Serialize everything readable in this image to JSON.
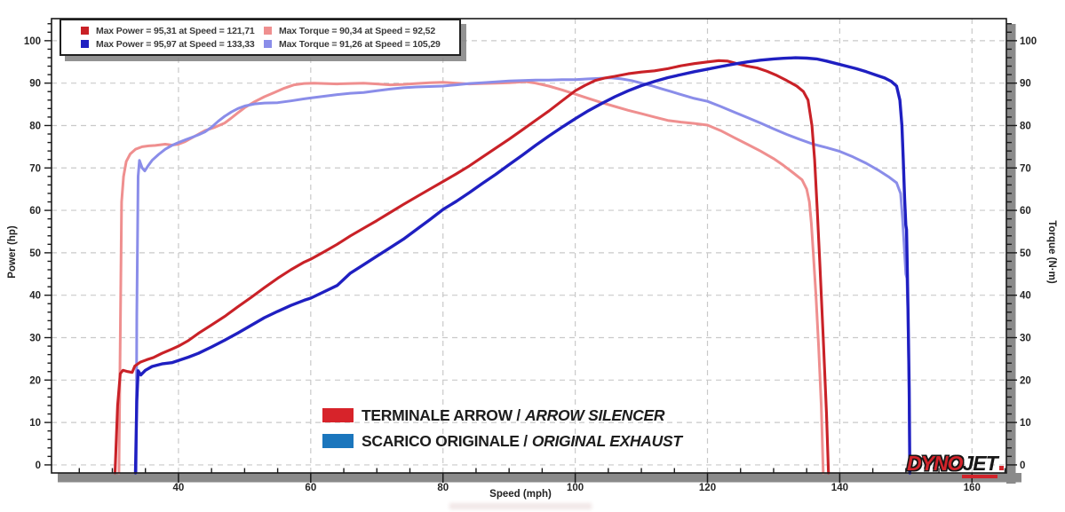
{
  "chart_data": {
    "type": "line",
    "xlabel": "Speed (mph)",
    "ylabel_left": "Power (hp)",
    "ylabel_right": "Torque (N·m)",
    "x_range": [
      20.8,
      165.2
    ],
    "y_range": [
      -1.9,
      105.2
    ],
    "x_ticks": [
      40,
      60,
      80,
      100,
      120,
      140,
      160
    ],
    "y_ticks": [
      0,
      10,
      20,
      30,
      40,
      50,
      60,
      70,
      80,
      90,
      100
    ],
    "x_minor_step": 5,
    "y_minor_step": 2,
    "grid": "dashed",
    "legend_position": "top-left",
    "series": [
      {
        "name": "arrow-power",
        "legend": "Max Power = 95,31 at Speed = 121,71",
        "color": "#c92127",
        "width": 3.1,
        "points": [
          [
            30.4,
            -1.9
          ],
          [
            30.8,
            14
          ],
          [
            31.2,
            21.5
          ],
          [
            31.6,
            22.3
          ],
          [
            32.3,
            22.0
          ],
          [
            33.0,
            21.8
          ],
          [
            33.4,
            23.3
          ],
          [
            34.2,
            24.2
          ],
          [
            35.2,
            24.8
          ],
          [
            36.2,
            25.3
          ],
          [
            37.5,
            26.3
          ],
          [
            39,
            27.3
          ],
          [
            40,
            28.0
          ],
          [
            41.5,
            29.3
          ],
          [
            43,
            31
          ],
          [
            45,
            33
          ],
          [
            47,
            35
          ],
          [
            49,
            37.3
          ],
          [
            51,
            39.5
          ],
          [
            53,
            41.8
          ],
          [
            55,
            44
          ],
          [
            57,
            46
          ],
          [
            59,
            47.8
          ],
          [
            60,
            48.5
          ],
          [
            62,
            50.2
          ],
          [
            64,
            52
          ],
          [
            66,
            54
          ],
          [
            68,
            55.8
          ],
          [
            70,
            57.6
          ],
          [
            72,
            59.5
          ],
          [
            74,
            61.4
          ],
          [
            76,
            63.2
          ],
          [
            78,
            65
          ],
          [
            80,
            66.8
          ],
          [
            82,
            68.6
          ],
          [
            84,
            70.5
          ],
          [
            86,
            72.6
          ],
          [
            88,
            74.7
          ],
          [
            90,
            76.8
          ],
          [
            92,
            79
          ],
          [
            94,
            81.2
          ],
          [
            96,
            83.4
          ],
          [
            98,
            85.8
          ],
          [
            100,
            88.2
          ],
          [
            101.5,
            89.5
          ],
          [
            103,
            90.6
          ],
          [
            104.5,
            91.2
          ],
          [
            106,
            91.6
          ],
          [
            108,
            92.2
          ],
          [
            110,
            92.6
          ],
          [
            112,
            92.9
          ],
          [
            114,
            93.4
          ],
          [
            116,
            94.1
          ],
          [
            118,
            94.6
          ],
          [
            120,
            95.0
          ],
          [
            121.7,
            95.31
          ],
          [
            123,
            95.2
          ],
          [
            124.5,
            94.6
          ],
          [
            126,
            94.0
          ],
          [
            127.5,
            93.6
          ],
          [
            129,
            92.8
          ],
          [
            130.5,
            91.8
          ],
          [
            132,
            90.6
          ],
          [
            133.5,
            89.3
          ],
          [
            134.5,
            88.0
          ],
          [
            135.2,
            86.0
          ],
          [
            135.8,
            80
          ],
          [
            136.2,
            72
          ],
          [
            136.6,
            60
          ],
          [
            137.0,
            47
          ],
          [
            137.5,
            30
          ],
          [
            138.0,
            12
          ],
          [
            138.3,
            -1.9
          ]
        ]
      },
      {
        "name": "original-power",
        "legend": "Max Power = 95,97 at Speed = 133,33",
        "color": "#1f1fc1",
        "width": 3.4,
        "points": [
          [
            33.5,
            -1.9
          ],
          [
            33.7,
            15
          ],
          [
            33.9,
            22.2
          ],
          [
            34.3,
            21.2
          ],
          [
            35,
            22.3
          ],
          [
            36,
            23.2
          ],
          [
            37.5,
            23.8
          ],
          [
            39,
            24.1
          ],
          [
            40,
            24.6
          ],
          [
            41.5,
            25.4
          ],
          [
            43,
            26.3
          ],
          [
            45,
            27.8
          ],
          [
            47,
            29.4
          ],
          [
            49,
            31.1
          ],
          [
            51,
            32.9
          ],
          [
            53,
            34.7
          ],
          [
            55,
            36.2
          ],
          [
            57,
            37.6
          ],
          [
            59,
            38.8
          ],
          [
            60,
            39.3
          ],
          [
            62,
            40.8
          ],
          [
            64,
            42.3
          ],
          [
            66,
            45.2
          ],
          [
            68,
            47.2
          ],
          [
            70,
            49.2
          ],
          [
            72,
            51.2
          ],
          [
            74,
            53.2
          ],
          [
            76,
            55.5
          ],
          [
            78,
            57.8
          ],
          [
            80,
            60.2
          ],
          [
            82,
            62.1
          ],
          [
            84,
            64.2
          ],
          [
            86,
            66.4
          ],
          [
            88,
            68.5
          ],
          [
            90,
            70.8
          ],
          [
            92,
            73
          ],
          [
            94,
            75.3
          ],
          [
            96,
            77.5
          ],
          [
            98,
            79.6
          ],
          [
            100,
            81.6
          ],
          [
            102,
            83.5
          ],
          [
            104,
            85.2
          ],
          [
            106,
            86.8
          ],
          [
            108,
            88.2
          ],
          [
            110,
            89.4
          ],
          [
            112,
            90.4
          ],
          [
            114,
            91.3
          ],
          [
            116,
            92
          ],
          [
            118,
            92.7
          ],
          [
            120,
            93.3
          ],
          [
            122,
            93.9
          ],
          [
            124,
            94.5
          ],
          [
            126,
            95
          ],
          [
            128,
            95.4
          ],
          [
            130,
            95.7
          ],
          [
            131.5,
            95.85
          ],
          [
            133.3,
            95.97
          ],
          [
            135,
            95.9
          ],
          [
            136.5,
            95.7
          ],
          [
            138,
            95.2
          ],
          [
            139.5,
            94.6
          ],
          [
            141,
            94
          ],
          [
            142.5,
            93.4
          ],
          [
            144,
            92.7
          ],
          [
            145.5,
            91.9
          ],
          [
            146.8,
            91.2
          ],
          [
            147.8,
            90.4
          ],
          [
            148.6,
            89.3
          ],
          [
            149.1,
            86
          ],
          [
            149.4,
            80
          ],
          [
            149.6,
            72
          ],
          [
            149.8,
            63
          ],
          [
            150.0,
            56.5
          ],
          [
            150.1,
            55.5
          ],
          [
            150.2,
            48
          ],
          [
            150.35,
            35
          ],
          [
            150.5,
            18
          ],
          [
            150.6,
            -1.9
          ]
        ]
      },
      {
        "name": "arrow-torque",
        "legend": "Max Torque = 90,34 at Speed = 92,52",
        "color": "#ef8f8f",
        "width": 3.0,
        "points": [
          [
            31.0,
            -1.9
          ],
          [
            31.2,
            30
          ],
          [
            31.4,
            62
          ],
          [
            31.7,
            68
          ],
          [
            32.1,
            71.5
          ],
          [
            32.7,
            73.3
          ],
          [
            33.5,
            74.4
          ],
          [
            34.5,
            75.0
          ],
          [
            35.5,
            75.2
          ],
          [
            36.5,
            75.3
          ],
          [
            38,
            75.6
          ],
          [
            39,
            75.4
          ],
          [
            40,
            75.6
          ],
          [
            41,
            76.2
          ],
          [
            42.5,
            77.5
          ],
          [
            44,
            78.8
          ],
          [
            45.5,
            79.6
          ],
          [
            47,
            80.6
          ],
          [
            48,
            81.8
          ],
          [
            49,
            83
          ],
          [
            50,
            84.2
          ],
          [
            51.5,
            85.6
          ],
          [
            53,
            86.8
          ],
          [
            54.5,
            87.8
          ],
          [
            56,
            88.8
          ],
          [
            57.5,
            89.6
          ],
          [
            59,
            89.9
          ],
          [
            60.5,
            90.0
          ],
          [
            62,
            89.9
          ],
          [
            64,
            89.8
          ],
          [
            66,
            89.9
          ],
          [
            68,
            90.0
          ],
          [
            70,
            89.8
          ],
          [
            72,
            89.6
          ],
          [
            74,
            89.7
          ],
          [
            76,
            89.9
          ],
          [
            78,
            90.1
          ],
          [
            80,
            90.2
          ],
          [
            82,
            90.0
          ],
          [
            84,
            89.8
          ],
          [
            86,
            89.9
          ],
          [
            88,
            90.0
          ],
          [
            90,
            90.1
          ],
          [
            92.5,
            90.34
          ],
          [
            94,
            90.0
          ],
          [
            96,
            89.3
          ],
          [
            98,
            88.4
          ],
          [
            100,
            87.4
          ],
          [
            102,
            86.4
          ],
          [
            104,
            85.4
          ],
          [
            106,
            84.5
          ],
          [
            108,
            83.6
          ],
          [
            110,
            82.8
          ],
          [
            112,
            82.0
          ],
          [
            114,
            81.2
          ],
          [
            116,
            80.8
          ],
          [
            118,
            80.5
          ],
          [
            120,
            80.1
          ],
          [
            122,
            78.8
          ],
          [
            124,
            77.2
          ],
          [
            126,
            75.6
          ],
          [
            128,
            74.0
          ],
          [
            130,
            72.2
          ],
          [
            131.5,
            70.6
          ],
          [
            133,
            68.8
          ],
          [
            134.3,
            67.2
          ],
          [
            135.0,
            65.0
          ],
          [
            135.4,
            62
          ],
          [
            135.7,
            57
          ],
          [
            136.0,
            50
          ],
          [
            136.4,
            40
          ],
          [
            136.8,
            28
          ],
          [
            137.2,
            14
          ],
          [
            137.5,
            -1.9
          ]
        ]
      },
      {
        "name": "original-torque",
        "legend": "Max Torque = 91,26 at Speed = 105,29",
        "color": "#8a8de9",
        "width": 3.0,
        "points": [
          [
            33.6,
            -1.9
          ],
          [
            33.7,
            35
          ],
          [
            33.9,
            68
          ],
          [
            34.1,
            71.8
          ],
          [
            34.5,
            70.0
          ],
          [
            34.9,
            69.3
          ],
          [
            35.4,
            70.5
          ],
          [
            36,
            71.8
          ],
          [
            37,
            73.2
          ],
          [
            38,
            74.4
          ],
          [
            39,
            75.3
          ],
          [
            40,
            76.0
          ],
          [
            41,
            76.6
          ],
          [
            42,
            77.2
          ],
          [
            43,
            77.8
          ],
          [
            44,
            78.5
          ],
          [
            45,
            79.6
          ],
          [
            46,
            81.0
          ],
          [
            47,
            82.2
          ],
          [
            48,
            83.2
          ],
          [
            49,
            84.0
          ],
          [
            50,
            84.6
          ],
          [
            51.5,
            85.1
          ],
          [
            53,
            85.3
          ],
          [
            55,
            85.4
          ],
          [
            57,
            85.8
          ],
          [
            59,
            86.3
          ],
          [
            60,
            86.5
          ],
          [
            62,
            86.9
          ],
          [
            64,
            87.3
          ],
          [
            66,
            87.6
          ],
          [
            68,
            87.8
          ],
          [
            70,
            88.2
          ],
          [
            72,
            88.6
          ],
          [
            74,
            88.9
          ],
          [
            76,
            89.1
          ],
          [
            78,
            89.2
          ],
          [
            80,
            89.3
          ],
          [
            82,
            89.6
          ],
          [
            84,
            89.9
          ],
          [
            86,
            90.1
          ],
          [
            88,
            90.3
          ],
          [
            90,
            90.5
          ],
          [
            92,
            90.6
          ],
          [
            94,
            90.7
          ],
          [
            96,
            90.7
          ],
          [
            98,
            90.8
          ],
          [
            100,
            90.8
          ],
          [
            102,
            91.0
          ],
          [
            103.5,
            91.1
          ],
          [
            105.3,
            91.26
          ],
          [
            107,
            91.0
          ],
          [
            108.5,
            90.6
          ],
          [
            110,
            90.0
          ],
          [
            111.5,
            89.4
          ],
          [
            113,
            88.7
          ],
          [
            114.5,
            88.0
          ],
          [
            116,
            87.3
          ],
          [
            118,
            86.4
          ],
          [
            120,
            85.7
          ],
          [
            122,
            84.5
          ],
          [
            124,
            83.2
          ],
          [
            126,
            81.9
          ],
          [
            128,
            80.6
          ],
          [
            130,
            79.2
          ],
          [
            132,
            77.9
          ],
          [
            134,
            76.7
          ],
          [
            136,
            75.6
          ],
          [
            138,
            74.8
          ],
          [
            140,
            73.9
          ],
          [
            142,
            72.6
          ],
          [
            144,
            71.1
          ],
          [
            146,
            69.3
          ],
          [
            147.5,
            67.8
          ],
          [
            148.6,
            66.5
          ],
          [
            149.2,
            64
          ],
          [
            149.5,
            58
          ],
          [
            149.8,
            50
          ],
          [
            150.0,
            45
          ],
          [
            150.15,
            44
          ],
          [
            150.3,
            36
          ],
          [
            150.45,
            22
          ],
          [
            150.6,
            -1.9
          ]
        ]
      }
    ]
  },
  "annotations": [
    {
      "swatch": "#d7232a",
      "plain": "TERMINALE ARROW /",
      "italic": "ARROW SILENCER"
    },
    {
      "swatch": "#1b76bd",
      "plain": "SCARICO ORIGINALE /",
      "italic": "ORIGINAL EXHAUST"
    }
  ],
  "logo": {
    "dyno": "DYNO",
    "jet": "JET"
  },
  "colors": {
    "grid": "#c9c9c9",
    "axis": "#1a1a1a",
    "shadow": "#8a8a8a",
    "tick_label": "#262626"
  }
}
